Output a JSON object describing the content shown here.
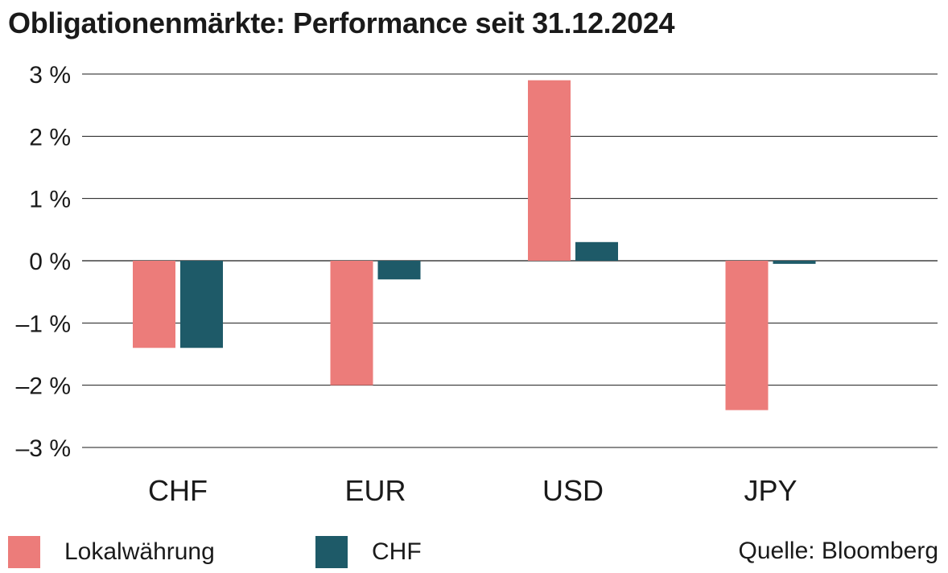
{
  "chart_data": {
    "type": "bar",
    "title": "Obligationenmärkte: Performance seit 31.12.2024",
    "categories": [
      "CHF",
      "EUR",
      "USD",
      "JPY"
    ],
    "series": [
      {
        "name": "Lokalwährung",
        "color": "#ec7c7a",
        "values": [
          -1.4,
          -2.0,
          2.9,
          -2.4
        ]
      },
      {
        "name": "CHF",
        "color": "#1e5a68",
        "values": [
          -1.4,
          -0.3,
          0.3,
          -0.05
        ]
      }
    ],
    "y_ticks": [
      3,
      2,
      1,
      0,
      -1,
      -2,
      -3
    ],
    "y_tick_labels": [
      "3 %",
      "2 %",
      "1 %",
      "0 %",
      "–1 %",
      "–2 %",
      "–3 %"
    ],
    "ylim": [
      -3,
      3
    ],
    "xlabel": "",
    "ylabel": "",
    "grid": true,
    "legend_position": "bottom-left",
    "source": "Quelle: Bloomberg"
  }
}
